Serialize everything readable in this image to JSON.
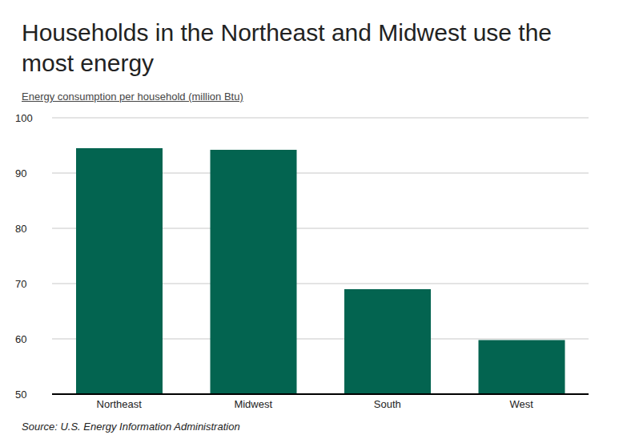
{
  "chart_data": {
    "type": "bar",
    "title": "Households in the Northeast and Midwest use the most energy",
    "y_label": "Energy consumption per household (million Btu)",
    "source": "Source: U.S. Energy Information Administration",
    "categories": [
      "Northeast",
      "Midwest",
      "South",
      "West"
    ],
    "values": [
      94.5,
      94.2,
      69,
      59.8
    ],
    "color": "#036450",
    "ylim": [
      50,
      100
    ],
    "yticks": [
      50,
      60,
      70,
      80,
      90,
      100
    ],
    "grid": true
  }
}
